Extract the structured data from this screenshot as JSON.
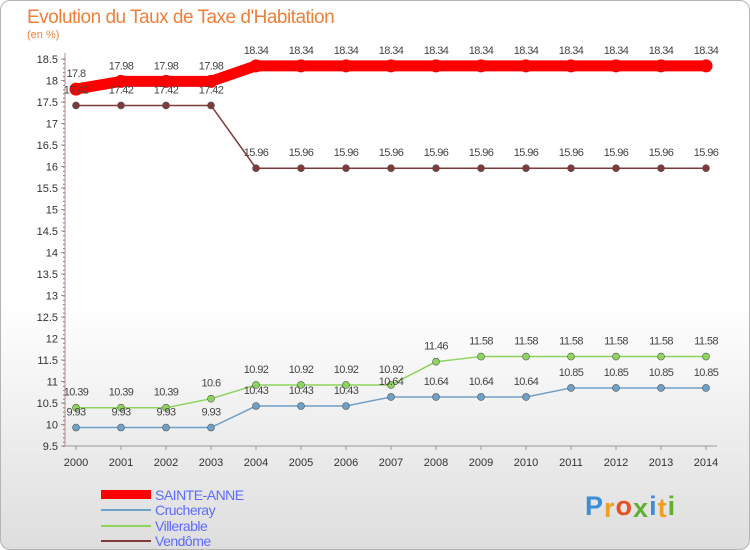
{
  "title": "Evolution du Taux de Taxe d'Habitation",
  "unit": "(en %)",
  "logo": "Proxiti",
  "chart_data": {
    "type": "line",
    "title": "Evolution du Taux de Taxe d'Habitation",
    "ylabel": "(en %)",
    "xlabel": "",
    "ylim": [
      9.5,
      18.5
    ],
    "yticks": [
      9.5,
      10,
      10.5,
      11,
      11.5,
      12,
      12.5,
      13,
      13.5,
      14,
      14.5,
      15,
      15.5,
      16,
      16.5,
      17,
      17.5,
      18,
      18.5
    ],
    "categories": [
      "2000",
      "2001",
      "2002",
      "2003",
      "2004",
      "2005",
      "2006",
      "2007",
      "2008",
      "2009",
      "2010",
      "2011",
      "2012",
      "2013",
      "2014"
    ],
    "series": [
      {
        "name": "SAINTE-ANNE",
        "color": "#ff0000",
        "values": [
          17.8,
          17.98,
          17.98,
          17.98,
          18.34,
          18.34,
          18.34,
          18.34,
          18.34,
          18.34,
          18.34,
          18.34,
          18.34,
          18.34,
          18.34
        ]
      },
      {
        "name": "Crucheray",
        "color": "#6fa0c8",
        "values": [
          9.93,
          9.93,
          9.93,
          9.93,
          10.43,
          10.43,
          10.43,
          10.64,
          10.64,
          10.64,
          10.64,
          10.85,
          10.85,
          10.85,
          10.85
        ]
      },
      {
        "name": "Villerable",
        "color": "#8dd45c",
        "values": [
          10.39,
          10.39,
          10.39,
          10.6,
          10.92,
          10.92,
          10.92,
          10.92,
          11.46,
          11.58,
          11.58,
          11.58,
          11.58,
          11.58,
          11.58
        ]
      },
      {
        "name": "Vendôme",
        "color": "#7f3a3a",
        "values": [
          17.42,
          17.42,
          17.42,
          17.42,
          15.96,
          15.96,
          15.96,
          15.96,
          15.96,
          15.96,
          15.96,
          15.96,
          15.96,
          15.96,
          15.96
        ]
      }
    ],
    "legend": "bottom-left",
    "grid": false
  }
}
